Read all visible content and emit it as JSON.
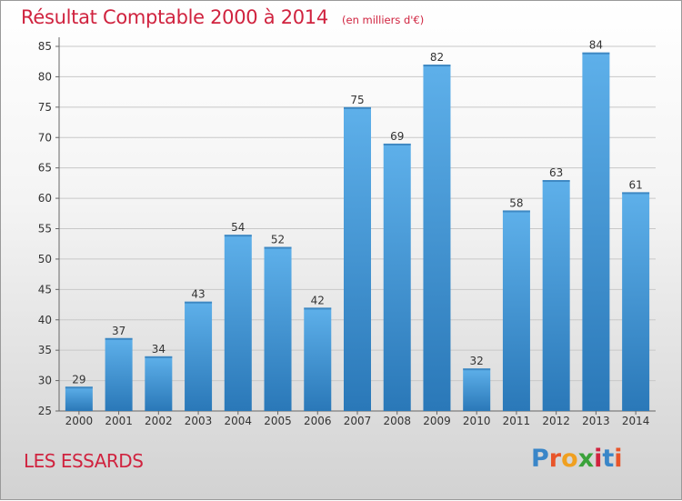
{
  "title": "Résultat Comptable 2000 à 2014",
  "subtitle": "(en milliers d'€)",
  "commune": "LES ESSARDS",
  "logo": {
    "text": "Proxiti",
    "colors": [
      "#3a86c8",
      "#e8552a",
      "#f0a020",
      "#3aa23a",
      "#d0233f",
      "#3a86c8",
      "#e8552a"
    ]
  },
  "colors": {
    "accent": "#d0233f",
    "bar_top": "#5eb0ea",
    "bar_bottom": "#2a78b8"
  },
  "chart_data": {
    "type": "bar",
    "title": "Résultat Comptable 2000 à 2014",
    "categories": [
      "2000",
      "2001",
      "2002",
      "2003",
      "2004",
      "2005",
      "2006",
      "2007",
      "2008",
      "2009",
      "2010",
      "2011",
      "2012",
      "2013",
      "2014"
    ],
    "values": [
      29,
      37,
      34,
      43,
      54,
      52,
      42,
      75,
      69,
      82,
      32,
      58,
      63,
      84,
      61
    ],
    "xlabel": "",
    "ylabel": "",
    "ylim": [
      25,
      85
    ],
    "yticks": [
      25,
      30,
      35,
      40,
      45,
      50,
      55,
      60,
      65,
      70,
      75,
      80,
      85
    ],
    "grid": true,
    "legend": "none"
  }
}
